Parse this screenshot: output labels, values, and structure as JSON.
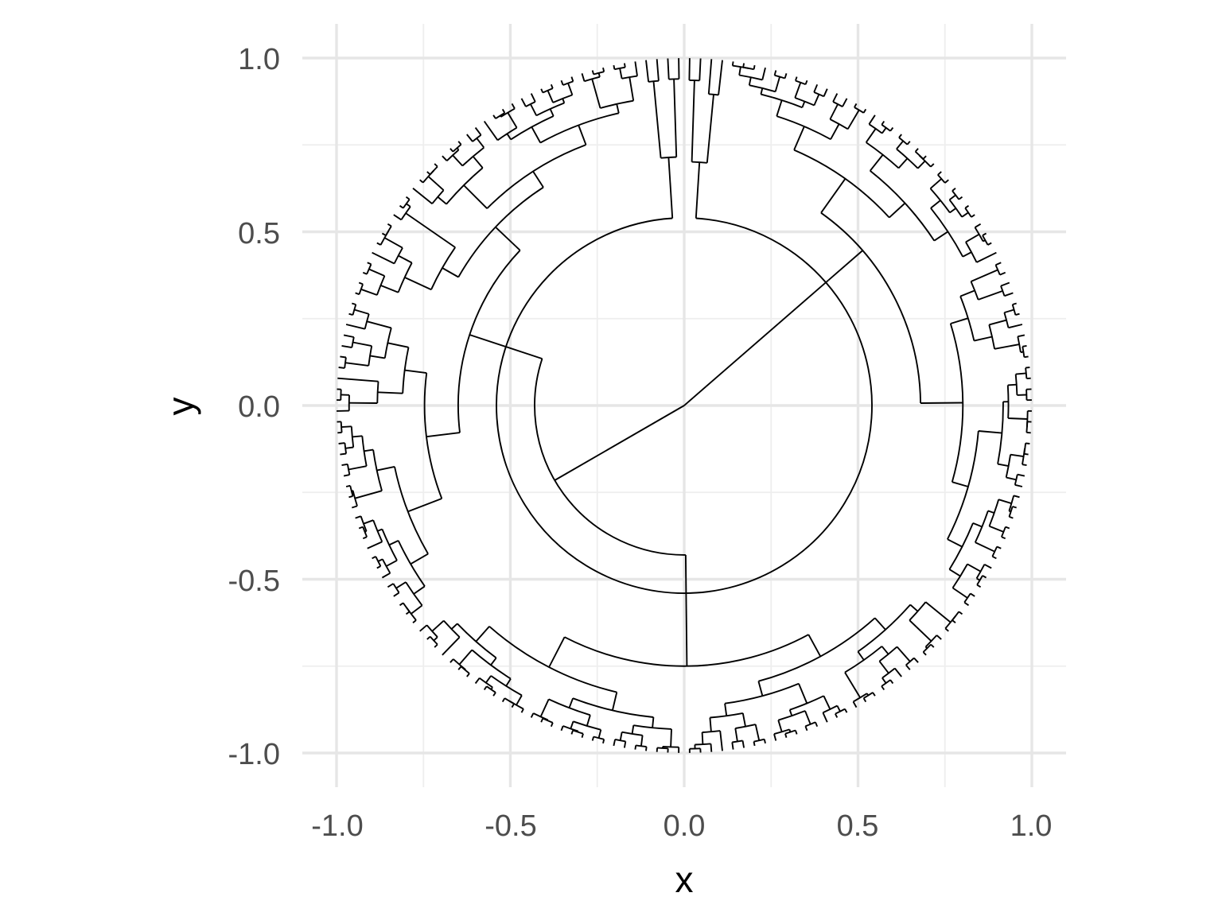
{
  "chart_data": {
    "type": "dendrogram",
    "layout": "circular",
    "xlabel": "x",
    "ylabel": "y",
    "xlim": [
      -1.05,
      1.05
    ],
    "ylim": [
      -1.1,
      1.1
    ],
    "x_ticks": [
      -1.0,
      -0.5,
      0.0,
      0.5,
      1.0
    ],
    "x_tick_labels": [
      "-1.0",
      "-0.5",
      "0.0",
      "0.5",
      "1.0"
    ],
    "y_ticks": [
      -1.0,
      -0.5,
      0.0,
      0.5,
      1.0
    ],
    "y_tick_labels": [
      "-1.0",
      "-0.5",
      "0.0",
      "0.5",
      "1.0"
    ],
    "grid": true,
    "colors": {
      "tree": "#000000",
      "grid": "#e6e6e6",
      "text": "#4d4d4d"
    },
    "leaf_count": 200,
    "leaf_radius": 1.0,
    "root": {
      "x": 0.0,
      "y": 0.0
    },
    "main_clusters": [
      {
        "from_angle_deg": 208,
        "to_angle_deg": 276,
        "radius": 0.43,
        "join_angle_deg": 210
      },
      {
        "from_angle_deg": 276,
        "to_angle_deg": 150,
        "radius": 0.43,
        "join_angle_deg": 210
      },
      {
        "from_angle_deg": 78,
        "to_angle_deg": 302,
        "radius": 0.68,
        "join_angle_deg": 41
      }
    ]
  }
}
